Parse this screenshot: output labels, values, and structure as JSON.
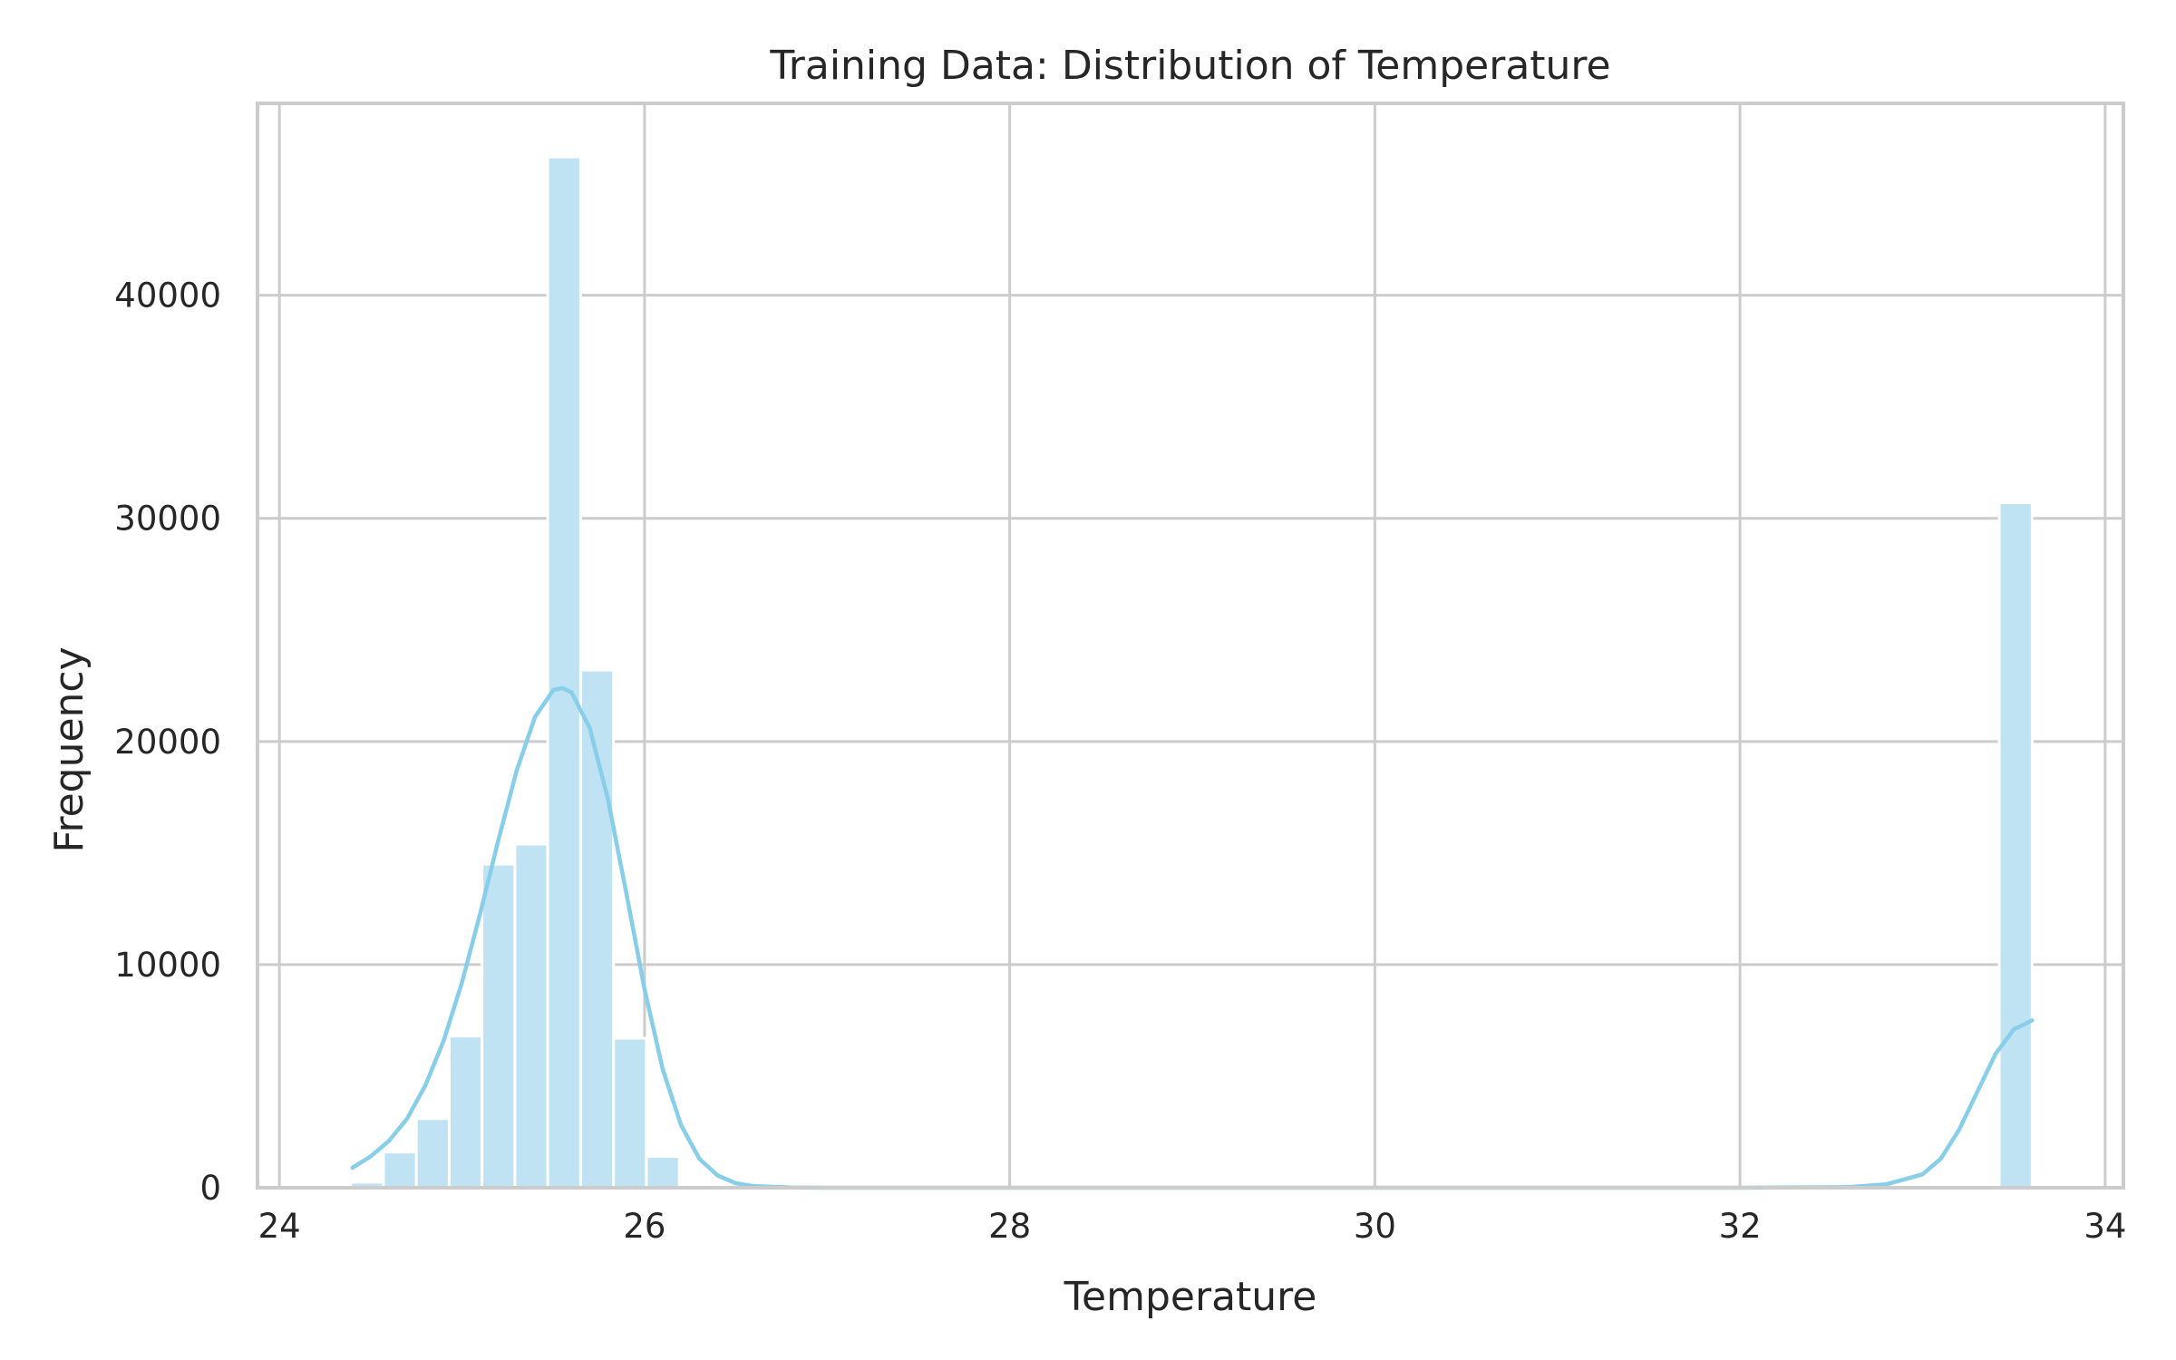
{
  "chart_data": {
    "type": "bar",
    "title": "Training Data: Distribution of Temperature",
    "xlabel": "Temperature",
    "ylabel": "Frequency",
    "xlim": [
      23.88,
      34.1
    ],
    "ylim": [
      0,
      48600
    ],
    "x_ticks": [
      24,
      26,
      28,
      30,
      32,
      34
    ],
    "y_ticks": [
      0,
      10000,
      20000,
      30000,
      40000
    ],
    "grid": true,
    "bin_width": 0.18,
    "bins": [
      {
        "x0": 24.39,
        "x1": 24.57,
        "count": 250
      },
      {
        "x0": 24.57,
        "x1": 24.75,
        "count": 1600
      },
      {
        "x0": 24.75,
        "x1": 24.93,
        "count": 3100
      },
      {
        "x0": 24.93,
        "x1": 25.11,
        "count": 6800
      },
      {
        "x0": 25.11,
        "x1": 25.29,
        "count": 14500
      },
      {
        "x0": 25.29,
        "x1": 25.47,
        "count": 15400
      },
      {
        "x0": 25.47,
        "x1": 25.65,
        "count": 46200
      },
      {
        "x0": 25.65,
        "x1": 25.83,
        "count": 23200
      },
      {
        "x0": 25.83,
        "x1": 26.01,
        "count": 6700
      },
      {
        "x0": 26.01,
        "x1": 26.19,
        "count": 1400
      },
      {
        "x0": 33.42,
        "x1": 33.6,
        "count": 30700
      }
    ],
    "kde": {
      "x": [
        24.4,
        24.5,
        24.6,
        24.7,
        24.8,
        24.9,
        25.0,
        25.1,
        25.2,
        25.3,
        25.4,
        25.5,
        25.55,
        25.6,
        25.7,
        25.8,
        25.9,
        26.0,
        26.1,
        26.2,
        26.3,
        26.4,
        26.5,
        26.6,
        26.8,
        27.0,
        28.0,
        30.0,
        32.0,
        32.6,
        32.8,
        33.0,
        33.1,
        33.2,
        33.3,
        33.4,
        33.5,
        33.6
      ],
      "y": [
        900,
        1400,
        2100,
        3100,
        4600,
        6600,
        9200,
        12300,
        15600,
        18700,
        21100,
        22300,
        22400,
        22200,
        20600,
        17400,
        13200,
        8900,
        5300,
        2800,
        1300,
        550,
        200,
        70,
        10,
        0,
        0,
        0,
        0,
        30,
        150,
        600,
        1300,
        2600,
        4300,
        6000,
        7100,
        7500
      ]
    },
    "colors": {
      "bar_fill": "#bfe3f2",
      "bar_edge": "#ffffff",
      "kde_line": "#87ceeb",
      "grid": "#cccccc",
      "frame": "#cccccc"
    }
  }
}
